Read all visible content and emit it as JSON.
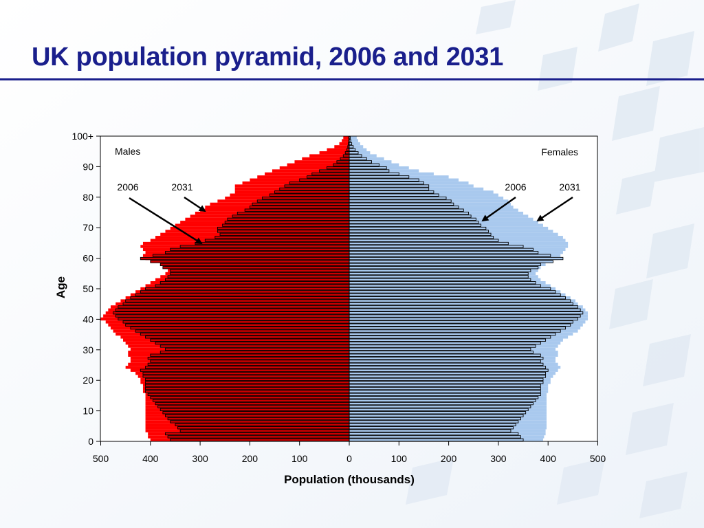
{
  "slide": {
    "title": "UK population pyramid, 2006 and 2031"
  },
  "colors": {
    "title": "#1a1f8c",
    "males_2006": "#cc0000",
    "males_2031": "#ff0000",
    "females_2006": "#a9c9ee",
    "females_2031": "#a9c9ee"
  },
  "chart_data": {
    "type": "bar",
    "orientation": "horizontal-pyramid",
    "xlabel": "Population (thousands)",
    "ylabel": "Age",
    "xlim": [
      -500,
      500
    ],
    "x_ticks": [
      -500,
      -400,
      -300,
      -200,
      -100,
      0,
      100,
      200,
      300,
      400,
      500
    ],
    "x_tick_labels": [
      "500",
      "400",
      "300",
      "200",
      "100",
      "0",
      "100",
      "200",
      "300",
      "400",
      "500"
    ],
    "y_ticks": [
      0,
      10,
      20,
      30,
      40,
      50,
      60,
      70,
      80,
      90,
      100
    ],
    "y_tick_labels": [
      "0",
      "10",
      "20",
      "30",
      "40",
      "50",
      "60",
      "70",
      "80",
      "90",
      "100+"
    ],
    "grid": false,
    "legend": "none",
    "side_labels": {
      "left": "Males",
      "right": "Females"
    },
    "annotations": [
      {
        "text": "2006",
        "side": "males",
        "series": "2006",
        "points_to_age": 65
      },
      {
        "text": "2031",
        "side": "males",
        "series": "2031",
        "points_to_age": 76
      },
      {
        "text": "2006",
        "side": "females",
        "series": "2006",
        "points_to_age": 72
      },
      {
        "text": "2031",
        "side": "females",
        "series": "2031",
        "points_to_age": 72
      }
    ],
    "ages": [
      0,
      1,
      2,
      3,
      4,
      5,
      6,
      7,
      8,
      9,
      10,
      11,
      12,
      13,
      14,
      15,
      16,
      17,
      18,
      19,
      20,
      21,
      22,
      23,
      24,
      25,
      26,
      27,
      28,
      29,
      30,
      31,
      32,
      33,
      34,
      35,
      36,
      37,
      38,
      39,
      40,
      41,
      42,
      43,
      44,
      45,
      46,
      47,
      48,
      49,
      50,
      51,
      52,
      53,
      54,
      55,
      56,
      57,
      58,
      59,
      60,
      61,
      62,
      63,
      64,
      65,
      66,
      67,
      68,
      69,
      70,
      71,
      72,
      73,
      74,
      75,
      76,
      77,
      78,
      79,
      80,
      81,
      82,
      83,
      84,
      85,
      86,
      87,
      88,
      89,
      90,
      91,
      92,
      93,
      94,
      95,
      96,
      97,
      98,
      99,
      100
    ],
    "series": [
      {
        "name": "2006",
        "sex": "males",
        "values": [
          360,
          365,
          370,
          340,
          345,
          350,
          360,
          365,
          370,
          375,
          380,
          385,
          390,
          395,
          400,
          405,
          410,
          410,
          410,
          410,
          410,
          415,
          415,
          420,
          410,
          405,
          400,
          405,
          400,
          380,
          370,
          380,
          390,
          400,
          410,
          420,
          430,
          440,
          450,
          455,
          465,
          470,
          475,
          470,
          465,
          455,
          450,
          440,
          430,
          420,
          410,
          390,
          380,
          370,
          365,
          360,
          360,
          375,
          380,
          400,
          420,
          395,
          370,
          360,
          340,
          310,
          290,
          270,
          260,
          265,
          265,
          255,
          250,
          245,
          235,
          225,
          210,
          200,
          195,
          185,
          175,
          160,
          150,
          140,
          130,
          120,
          100,
          85,
          75,
          60,
          45,
          32,
          25,
          18,
          12,
          8,
          5,
          3,
          2,
          1,
          1
        ]
      },
      {
        "name": "2031",
        "sex": "males",
        "values": [
          400,
          405,
          405,
          410,
          410,
          410,
          410,
          410,
          410,
          410,
          410,
          410,
          410,
          410,
          410,
          410,
          415,
          415,
          415,
          420,
          420,
          425,
          430,
          440,
          450,
          445,
          440,
          440,
          445,
          445,
          440,
          445,
          450,
          455,
          460,
          470,
          475,
          480,
          485,
          490,
          500,
          495,
          490,
          485,
          480,
          470,
          460,
          450,
          440,
          430,
          420,
          410,
          400,
          390,
          380,
          370,
          365,
          370,
          380,
          400,
          410,
          415,
          410,
          415,
          420,
          415,
          400,
          390,
          380,
          370,
          360,
          350,
          340,
          330,
          320,
          310,
          300,
          290,
          280,
          265,
          250,
          240,
          230,
          230,
          230,
          215,
          200,
          185,
          170,
          155,
          140,
          125,
          110,
          95,
          80,
          60,
          45,
          30,
          20,
          15,
          12
        ]
      },
      {
        "name": "2006",
        "sex": "females",
        "values": [
          350,
          345,
          340,
          325,
          330,
          335,
          340,
          345,
          350,
          355,
          360,
          365,
          370,
          375,
          380,
          385,
          385,
          385,
          385,
          390,
          390,
          395,
          395,
          400,
          395,
          390,
          385,
          390,
          385,
          370,
          365,
          375,
          385,
          395,
          405,
          415,
          425,
          435,
          445,
          450,
          460,
          465,
          470,
          465,
          460,
          450,
          445,
          435,
          425,
          415,
          405,
          385,
          375,
          365,
          360,
          360,
          365,
          380,
          385,
          410,
          430,
          405,
          380,
          370,
          350,
          320,
          300,
          290,
          285,
          280,
          275,
          265,
          260,
          255,
          245,
          240,
          230,
          220,
          210,
          205,
          195,
          180,
          170,
          160,
          160,
          150,
          140,
          120,
          100,
          80,
          75,
          60,
          45,
          35,
          25,
          18,
          12,
          8,
          5,
          3,
          2
        ]
      },
      {
        "name": "2031",
        "sex": "females",
        "values": [
          390,
          392,
          395,
          395,
          397,
          397,
          397,
          397,
          397,
          397,
          397,
          397,
          397,
          397,
          397,
          397,
          400,
          400,
          400,
          405,
          405,
          410,
          415,
          420,
          425,
          420,
          415,
          415,
          420,
          420,
          415,
          420,
          425,
          430,
          440,
          450,
          460,
          465,
          470,
          475,
          480,
          480,
          480,
          475,
          470,
          460,
          455,
          445,
          435,
          425,
          415,
          405,
          395,
          385,
          380,
          375,
          380,
          385,
          395,
          410,
          420,
          425,
          430,
          435,
          440,
          440,
          435,
          430,
          420,
          410,
          400,
          390,
          380,
          370,
          360,
          350,
          340,
          330,
          325,
          320,
          310,
          300,
          290,
          270,
          250,
          240,
          220,
          200,
          170,
          140,
          120,
          100,
          85,
          70,
          55,
          42,
          35,
          28,
          22,
          18,
          15
        ]
      }
    ]
  }
}
